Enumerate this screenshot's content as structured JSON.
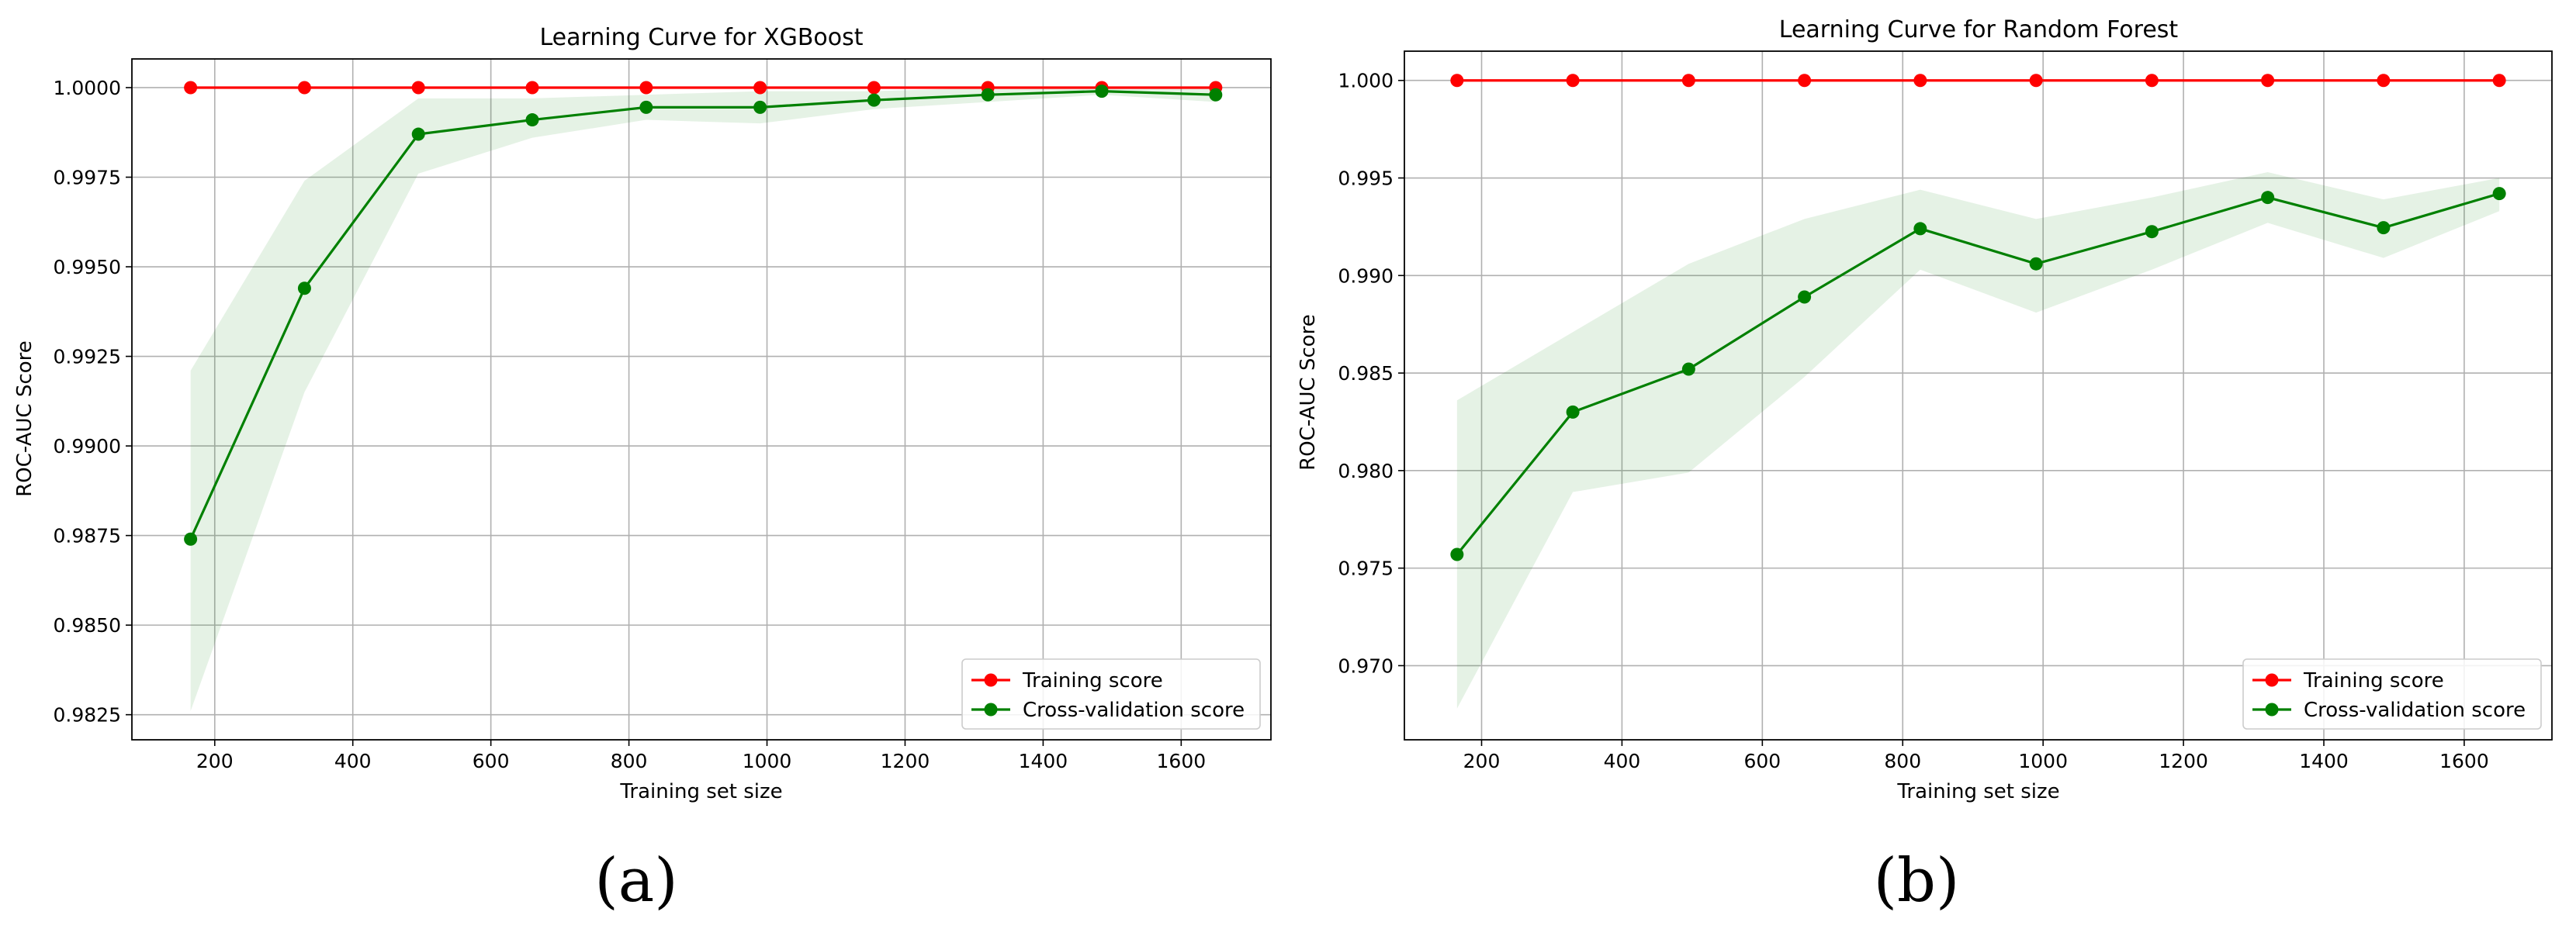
{
  "colors": {
    "training": "#ff0000",
    "cv": "#008000",
    "band": "#bfe3bf",
    "grid": "#b0b0b0"
  },
  "chart_data": [
    {
      "type": "line",
      "panel_label": "(a)",
      "title": "Learning Curve for XGBoost",
      "xlabel": "Training set size",
      "ylabel": "ROC-AUC Score",
      "xlim": [
        80,
        1730
      ],
      "ylim": [
        0.9818,
        1.0008
      ],
      "xticks": [
        200,
        400,
        600,
        800,
        1000,
        1200,
        1400,
        1600
      ],
      "xtick_labels": [
        "200",
        "400",
        "600",
        "800",
        "1000",
        "1200",
        "1400",
        "1600"
      ],
      "yticks": [
        0.9825,
        0.985,
        0.9875,
        0.99,
        0.9925,
        0.995,
        0.9975,
        1.0
      ],
      "ytick_labels": [
        "0.9825",
        "0.9850",
        "0.9875",
        "0.9900",
        "0.9925",
        "0.9950",
        "0.9975",
        "1.0000"
      ],
      "grid": true,
      "legend_position": "lower-right",
      "x": [
        165,
        330,
        495,
        660,
        825,
        990,
        1155,
        1320,
        1485,
        1650
      ],
      "series": [
        {
          "name": "Training score",
          "color": "#ff0000",
          "values": [
            1.0,
            1.0,
            1.0,
            1.0,
            1.0,
            1.0,
            1.0,
            1.0,
            1.0,
            1.0
          ]
        },
        {
          "name": "Cross-validation score",
          "color": "#008000",
          "values": [
            0.9874,
            0.9944,
            0.9987,
            0.9991,
            0.99945,
            0.99945,
            0.99965,
            0.9998,
            0.9999,
            0.9998
          ],
          "band_lower": [
            0.9826,
            0.9915,
            0.9976,
            0.9986,
            0.9991,
            0.999,
            0.9994,
            0.9996,
            0.9998,
            0.9996
          ],
          "band_upper": [
            0.9921,
            0.9974,
            0.9997,
            0.9997,
            0.9998,
            0.9999,
            0.9999,
            1.0,
            1.0,
            1.0
          ]
        }
      ]
    },
    {
      "type": "line",
      "panel_label": "(b)",
      "title": "Learning Curve for Random Forest",
      "xlabel": "Training set size",
      "ylabel": "ROC-AUC Score",
      "xlim": [
        90,
        1725
      ],
      "ylim": [
        0.9662,
        1.0015
      ],
      "xticks": [
        200,
        400,
        600,
        800,
        1000,
        1200,
        1400,
        1600
      ],
      "xtick_labels": [
        "200",
        "400",
        "600",
        "800",
        "1000",
        "1200",
        "1400",
        "1600"
      ],
      "yticks": [
        0.97,
        0.975,
        0.98,
        0.985,
        0.99,
        0.995,
        1.0
      ],
      "ytick_labels": [
        "0.970",
        "0.975",
        "0.980",
        "0.985",
        "0.990",
        "0.995",
        "1.000"
      ],
      "grid": true,
      "legend_position": "lower-right",
      "x": [
        165,
        330,
        495,
        660,
        825,
        990,
        1155,
        1320,
        1485,
        1650
      ],
      "series": [
        {
          "name": "Training score",
          "color": "#ff0000",
          "values": [
            1.0,
            1.0,
            1.0,
            1.0,
            1.0,
            1.0,
            1.0,
            1.0,
            1.0,
            1.0
          ]
        },
        {
          "name": "Cross-validation score",
          "color": "#008000",
          "values": [
            0.9757,
            0.983,
            0.9852,
            0.9889,
            0.9924,
            0.9906,
            0.99225,
            0.994,
            0.99245,
            0.9942
          ],
          "band_lower": [
            0.9678,
            0.9789,
            0.9799,
            0.9848,
            0.9903,
            0.9881,
            0.9903,
            0.9927,
            0.9909,
            0.9933
          ],
          "band_upper": [
            0.9836,
            0.9871,
            0.9906,
            0.9929,
            0.9944,
            0.9929,
            0.994,
            0.9953,
            0.9939,
            0.995
          ]
        }
      ]
    }
  ]
}
